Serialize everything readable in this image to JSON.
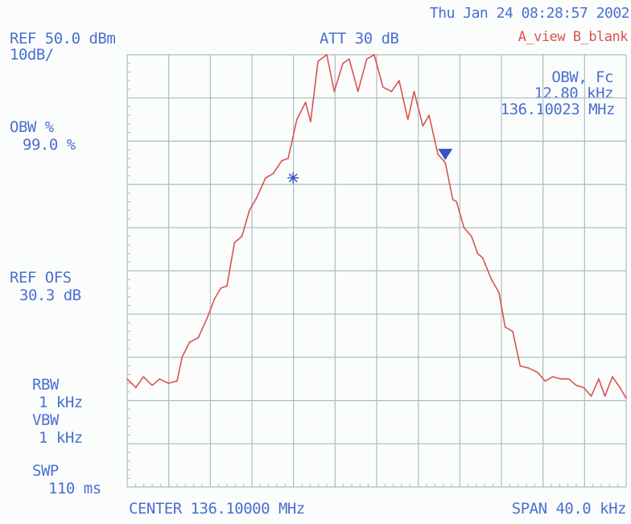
{
  "header": {
    "datetime": "Thu Jan 24 08:28:57 2002",
    "ref_level": "REF 50.0 dBm",
    "scale": "10dB/",
    "attenuation": "ATT 30 dB",
    "trace_modes": "A_view B_blank"
  },
  "left_panel": {
    "obw_pct_label": "OBW %",
    "obw_pct_value": "99.0 %",
    "ref_ofs_label": "REF OFS",
    "ref_ofs_value": "30.3 dB",
    "rbw_label": "RBW",
    "rbw_value": "1 kHz",
    "vbw_label": "VBW",
    "vbw_value": "1 kHz",
    "swp_label": "SWP",
    "swp_value": "110 ms"
  },
  "marker_readout": {
    "title": "OBW, Fc",
    "bandwidth": "12.80 kHz",
    "center_freq": "136.10023 MHz"
  },
  "footer": {
    "center": "CENTER 136.10000 MHz",
    "span": "SPAN 40.0 kHz"
  },
  "colors": {
    "grid": "#a9bcc1",
    "trace": "#d9534f",
    "text": "#4a6fd0",
    "marker": "#3354c4"
  },
  "chart_data": {
    "type": "line",
    "title": "",
    "xlabel": "",
    "ylabel": "",
    "x_unit": "kHz offset from center",
    "y_unit": "dBm",
    "xlim": [
      -20,
      20
    ],
    "ylim": [
      -50,
      50
    ],
    "grid": true,
    "x_divisions": 12,
    "y_divisions": 10,
    "series": [
      {
        "x": [
          -20,
          -19.3,
          -18.7,
          -18.0,
          -17.4,
          -16.7,
          -16.0,
          -15.6,
          -15.0,
          -14.3,
          -13.6,
          -13.0,
          -12.5,
          -12.0,
          -11.4,
          -10.8,
          -10.2,
          -9.6,
          -8.9,
          -8.3,
          -7.6,
          -7.1,
          -6.4,
          -5.7,
          -5.3,
          -4.7,
          -4.0,
          -3.4,
          -2.7,
          -2.2,
          -1.5,
          -0.8,
          -0.2,
          0.5,
          1.2,
          1.8,
          2.5,
          3.0,
          3.7,
          4.2,
          4.9,
          5.5,
          6.1,
          6.4,
          7.0,
          7.6,
          8.1,
          8.5,
          9.2,
          9.8,
          10.3,
          10.9,
          11.5,
          12.2,
          12.9,
          13.5,
          14.1,
          14.8,
          15.4,
          16.0,
          16.6,
          17.2,
          17.8,
          18.3,
          18.9,
          19.5,
          20.0
        ],
        "y": [
          -25.0,
          -27.0,
          -24.5,
          -26.5,
          -25.0,
          -26.0,
          -25.5,
          -20.0,
          -16.5,
          -15.5,
          -11.0,
          -6.5,
          -4.0,
          -3.5,
          6.5,
          8.0,
          14.0,
          17.0,
          21.5,
          22.5,
          25.5,
          26.0,
          35.0,
          39.0,
          34.5,
          48.5,
          50.0,
          41.5,
          48.0,
          49.0,
          41.5,
          49.0,
          50.0,
          42.5,
          41.5,
          44.0,
          35.0,
          41.5,
          33.5,
          36.0,
          27.0,
          25.0,
          16.5,
          16.0,
          10.0,
          8.0,
          4.0,
          3.0,
          -2.0,
          -5.0,
          -13.0,
          -14.0,
          -22.0,
          -22.5,
          -23.5,
          -25.5,
          -24.5,
          -25.0,
          -25.0,
          -26.5,
          -27.0,
          -29.0,
          -25.0,
          -29.0,
          -24.5,
          -27.0,
          -29.5
        ]
      }
    ],
    "markers": [
      {
        "type": "asterisk",
        "x": -6.7,
        "y": 21.5
      },
      {
        "type": "triangle-down",
        "x": 5.5,
        "y": 26.0
      }
    ]
  }
}
